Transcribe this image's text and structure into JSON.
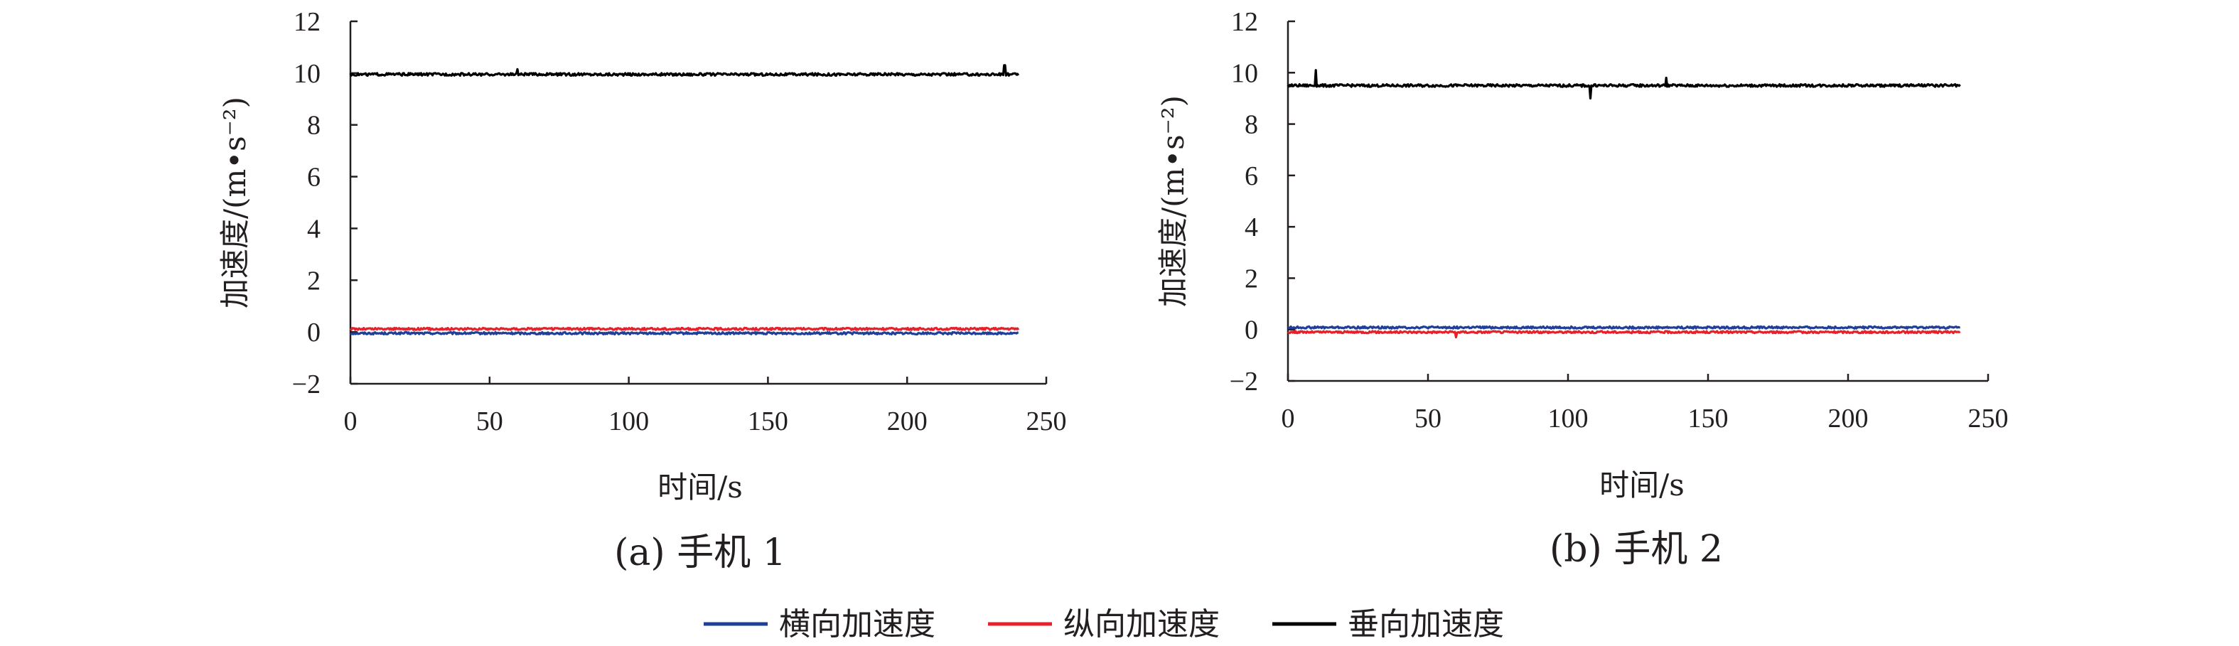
{
  "chart_data": [
    {
      "type": "line",
      "caption": "(a) 手机 1",
      "xlabel": "时间/s",
      "ylabel": "加速度/(m•s⁻²)",
      "xlim": [
        0,
        250
      ],
      "ylim": [
        -2,
        12
      ],
      "xticks": [
        "0",
        "50",
        "100",
        "150",
        "200",
        "250"
      ],
      "yticks": [
        "−2",
        "0",
        "2",
        "4",
        "6",
        "8",
        "10",
        "12"
      ],
      "x": [
        0,
        240
      ],
      "series": [
        {
          "name": "横向加速度",
          "color": "#1f3f99",
          "values": [
            -0.05,
            -0.05
          ],
          "noise": 0.08,
          "spikes": []
        },
        {
          "name": "纵向加速度",
          "color": "#e8202a",
          "values": [
            0.12,
            0.12
          ],
          "noise": 0.08,
          "spikes": []
        },
        {
          "name": "垂向加速度",
          "color": "#000000",
          "values": [
            9.95,
            9.95
          ],
          "noise": 0.1,
          "spikes": [
            [
              60,
              10.15
            ],
            [
              235,
              10.3
            ]
          ]
        }
      ]
    },
    {
      "type": "line",
      "caption": "(b) 手机 2",
      "xlabel": "时间/s",
      "ylabel": "加速度/(m•s⁻²)",
      "xlim": [
        0,
        250
      ],
      "ylim": [
        -2,
        12
      ],
      "xticks": [
        "0",
        "50",
        "100",
        "150",
        "200",
        "250"
      ],
      "yticks": [
        "−2",
        "0",
        "2",
        "4",
        "6",
        "8",
        "10",
        "12"
      ],
      "x": [
        0,
        240
      ],
      "series": [
        {
          "name": "横向加速度",
          "color": "#1f3f99",
          "values": [
            0.08,
            0.08
          ],
          "noise": 0.08,
          "spikes": []
        },
        {
          "name": "纵向加速度",
          "color": "#e8202a",
          "values": [
            -0.1,
            -0.1
          ],
          "noise": 0.08,
          "spikes": [
            [
              60,
              -0.3
            ]
          ]
        },
        {
          "name": "垂向加速度",
          "color": "#000000",
          "values": [
            9.5,
            9.5
          ],
          "noise": 0.1,
          "spikes": [
            [
              10,
              10.1
            ],
            [
              108,
              9.0
            ],
            [
              135,
              9.8
            ]
          ]
        }
      ]
    }
  ],
  "legend": {
    "position": "bottom-center",
    "items": [
      {
        "label": "横向加速度",
        "color": "#1f3f99"
      },
      {
        "label": "纵向加速度",
        "color": "#e8202a"
      },
      {
        "label": "垂向加速度",
        "color": "#000000"
      }
    ]
  }
}
